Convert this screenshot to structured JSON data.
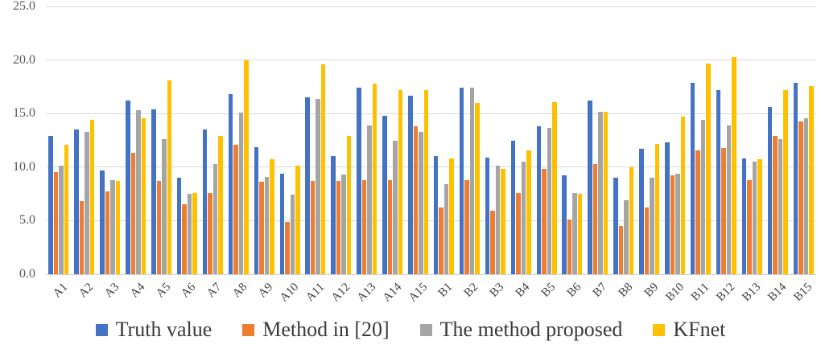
{
  "chart_data": {
    "type": "bar",
    "title": "",
    "xlabel": "",
    "ylabel": "",
    "ylim": [
      0,
      25
    ],
    "grid": true,
    "legend_position": "bottom",
    "yticks": [
      {
        "label": "0.0",
        "value": 0
      },
      {
        "label": "5.0",
        "value": 5
      },
      {
        "label": "10.0",
        "value": 10
      },
      {
        "label": "15.0",
        "value": 15
      },
      {
        "label": "20.0",
        "value": 20
      },
      {
        "label": "25.0",
        "value": 25
      }
    ],
    "categories": [
      "A1",
      "A2",
      "A3",
      "A4",
      "A5",
      "A6",
      "A7",
      "A8",
      "A9",
      "A10",
      "A11",
      "A12",
      "A13",
      "A14",
      "A15",
      "B1",
      "B2",
      "B3",
      "B4",
      "B5",
      "B6",
      "B7",
      "B8",
      "B9",
      "B10",
      "B11",
      "B12",
      "B13",
      "B14",
      "B15"
    ],
    "series": [
      {
        "name": "Truth value",
        "color": "#4472C4",
        "values": [
          12.9,
          13.5,
          9.7,
          16.2,
          15.4,
          9.0,
          13.5,
          16.8,
          11.9,
          9.4,
          16.5,
          11.0,
          17.4,
          14.8,
          16.7,
          11.0,
          17.4,
          10.9,
          12.5,
          13.8,
          9.2,
          16.2,
          9.0,
          11.7,
          12.3,
          17.9,
          17.2,
          10.8,
          15.6,
          17.9
        ]
      },
      {
        "name": "Method in [20]",
        "color": "#ED7D31",
        "values": [
          9.5,
          6.8,
          7.7,
          11.3,
          8.7,
          6.5,
          7.6,
          12.1,
          8.6,
          4.9,
          8.7,
          8.7,
          8.8,
          8.8,
          13.8,
          6.2,
          8.8,
          5.9,
          7.6,
          9.8,
          5.1,
          10.3,
          4.5,
          6.2,
          9.2,
          11.6,
          11.8,
          8.8,
          12.9,
          14.3
        ]
      },
      {
        "name": "The method proposed",
        "color": "#A5A5A5",
        "values": [
          10.1,
          13.3,
          8.8,
          15.3,
          12.6,
          7.5,
          10.3,
          15.1,
          9.1,
          7.4,
          16.4,
          9.3,
          13.9,
          12.5,
          13.3,
          8.4,
          17.4,
          10.1,
          10.5,
          13.7,
          7.6,
          15.2,
          6.9,
          9.0,
          9.4,
          14.4,
          13.9,
          10.5,
          12.6,
          14.6
        ]
      },
      {
        "name": "KFnet",
        "color": "#FFC000",
        "values": [
          12.1,
          14.4,
          8.7,
          14.6,
          18.1,
          7.6,
          12.9,
          20.0,
          10.7,
          10.1,
          19.6,
          12.9,
          17.8,
          17.2,
          17.2,
          10.8,
          16.0,
          9.8,
          11.6,
          16.1,
          7.5,
          15.2,
          10.0,
          12.2,
          14.7,
          19.7,
          20.3,
          10.7,
          17.2,
          17.6
        ]
      }
    ]
  }
}
